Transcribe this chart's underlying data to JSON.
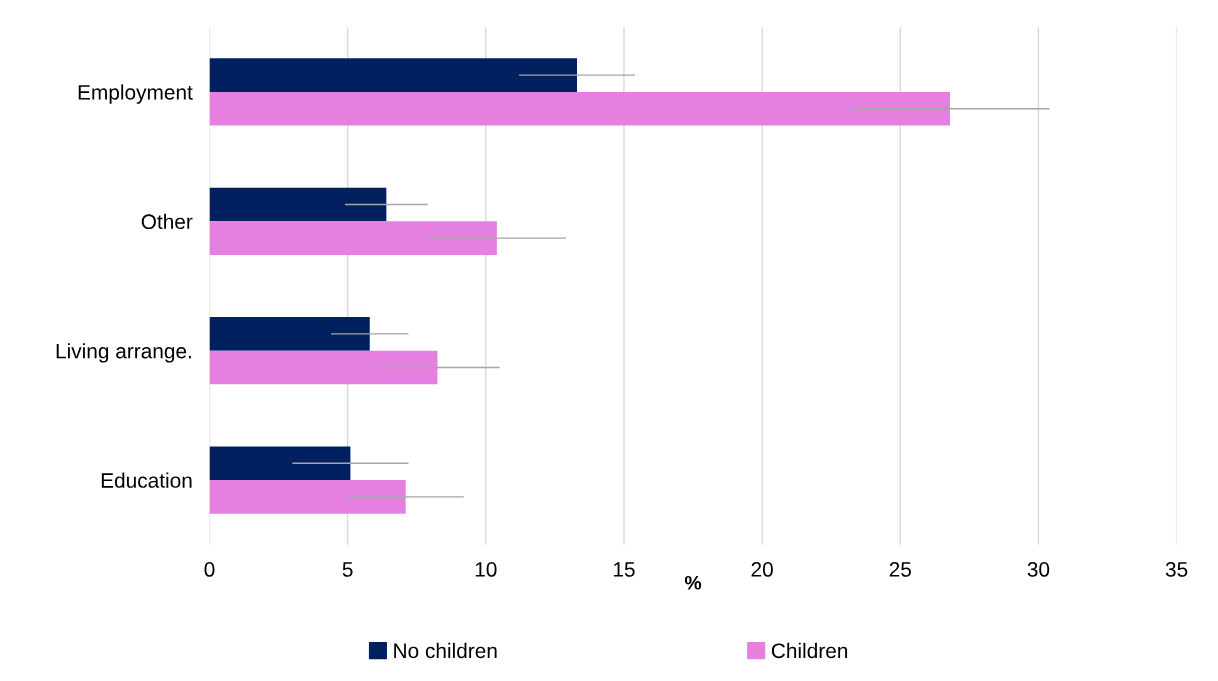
{
  "chart_data": {
    "type": "bar",
    "orientation": "horizontal",
    "categories": [
      "Employment",
      "Other",
      "Living arrange.",
      "Education"
    ],
    "series": [
      {
        "name": "No children",
        "color": "#002060",
        "values": [
          13.3,
          6.4,
          5.8,
          5.1
        ],
        "errors": [
          2.1,
          1.5,
          1.4,
          2.1
        ]
      },
      {
        "name": "Children",
        "color": "#e580e0",
        "values": [
          26.8,
          10.4,
          8.25,
          7.1
        ],
        "errors": [
          3.6,
          2.5,
          2.25,
          2.1
        ]
      }
    ],
    "xlabel": "%",
    "xlim": [
      0,
      35
    ],
    "xticks": [
      0,
      5,
      10,
      15,
      20,
      25,
      30,
      35
    ],
    "grid": "x",
    "legend": "bottom"
  }
}
